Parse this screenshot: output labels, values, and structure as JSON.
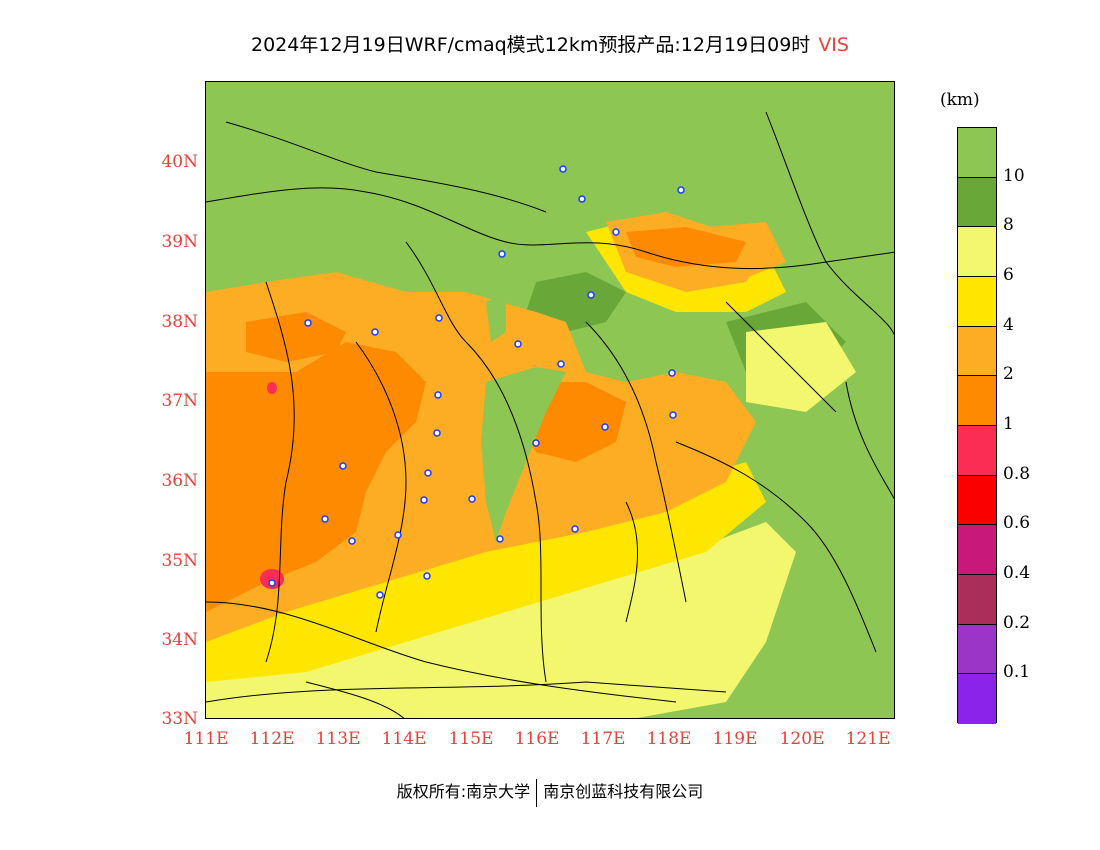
{
  "title": {
    "main": "2024年12月19日WRF/cmaq模式12km预报产品:12月19日09时",
    "variable": "VIS"
  },
  "unit": "(km)",
  "lat_labels": [
    "40N",
    "39N",
    "38N",
    "37N",
    "36N",
    "35N",
    "34N",
    "33N"
  ],
  "lon_labels": [
    "111E",
    "112E",
    "113E",
    "114E",
    "115E",
    "116E",
    "117E",
    "118E",
    "119E",
    "120E",
    "121E"
  ],
  "legend": {
    "colors": [
      "#8dc653",
      "#6aa739",
      "#f2f76d",
      "#ffe600",
      "#fcad24",
      "#fd8a00",
      "#fc2d55",
      "#fb0000",
      "#c8187a",
      "#ab2e5a",
      "#9a35c8",
      "#8b23eb"
    ],
    "labels": [
      "10",
      "8",
      "6",
      "4",
      "2",
      "1",
      "0.8",
      "0.6",
      "0.4",
      "0.2",
      "0.1"
    ]
  },
  "footer": {
    "left": "版权所有:南京大学",
    "right": "南京创蓝科技有限公司"
  }
}
